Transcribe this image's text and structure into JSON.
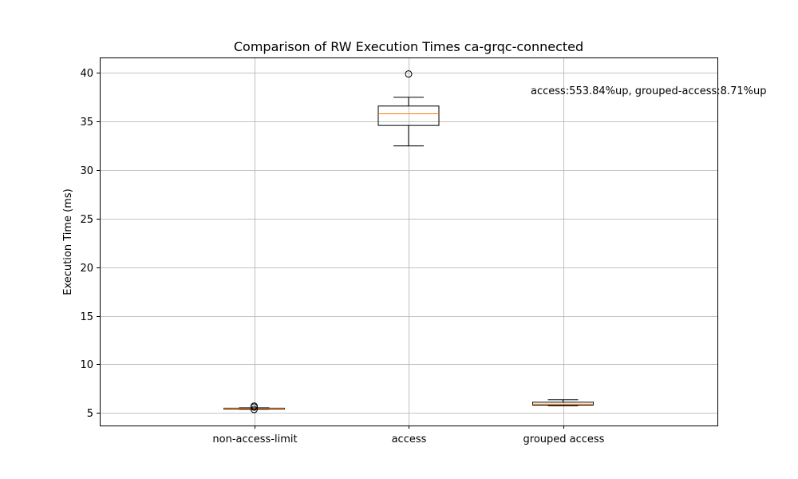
{
  "chart_data": {
    "type": "box",
    "title": "Comparison of RW Execution Times ca-grqc-connected",
    "xlabel": "",
    "ylabel": "Execution Time (ms)",
    "ylim": [
      3.7,
      41.6
    ],
    "yticks": [
      5,
      10,
      15,
      20,
      25,
      30,
      35,
      40
    ],
    "grid": true,
    "categories": [
      "non-access-limit",
      "access",
      "grouped access"
    ],
    "boxes": [
      {
        "category": "non-access-limit",
        "whisker_low": 5.38,
        "q1": 5.41,
        "median": 5.45,
        "q3": 5.48,
        "whisker_high": 5.52,
        "outliers": [
          5.7,
          5.6,
          5.35
        ]
      },
      {
        "category": "access",
        "whisker_low": 32.5,
        "q1": 34.6,
        "median": 35.8,
        "q3": 36.6,
        "whisker_high": 37.5,
        "outliers": [
          39.9
        ]
      },
      {
        "category": "grouped access",
        "whisker_low": 5.75,
        "q1": 5.8,
        "median": 5.9,
        "q3": 6.1,
        "whisker_high": 6.35,
        "outliers": []
      }
    ],
    "annotation": "access:553.84%up, grouped-access:8.71%up",
    "colors": {
      "box": "#000000",
      "median": "#ff7f0e",
      "grid": "#b0b0b0"
    }
  }
}
